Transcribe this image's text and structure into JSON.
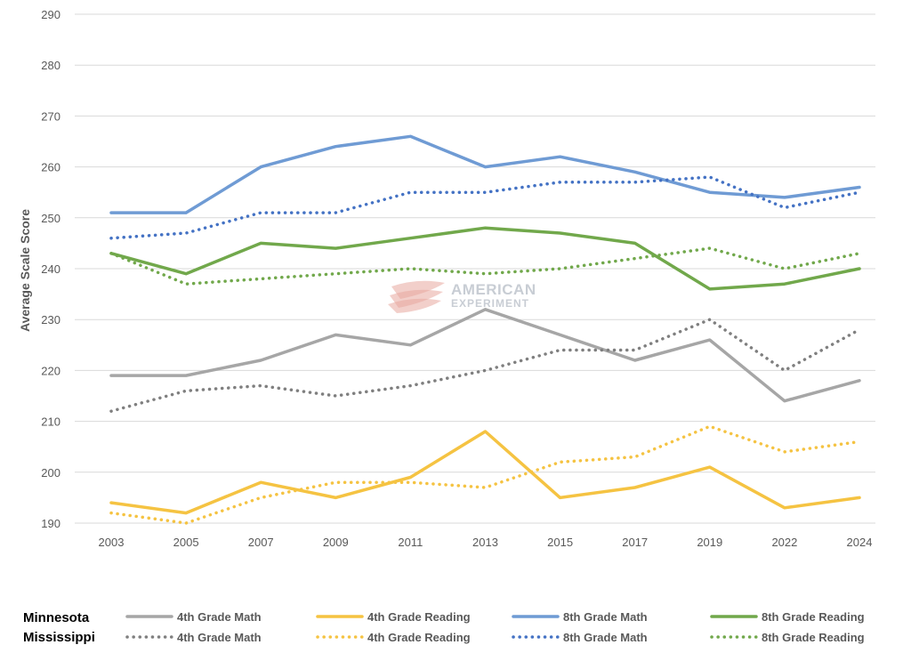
{
  "chart_data": {
    "type": "line",
    "title": "",
    "xlabel": "",
    "ylabel": "Average Scale Score",
    "categories": [
      "2003",
      "2005",
      "2007",
      "2009",
      "2011",
      "2013",
      "2015",
      "2017",
      "2019",
      "2022",
      "2024"
    ],
    "ylim": [
      190,
      290
    ],
    "yticks": [
      190,
      200,
      210,
      220,
      230,
      240,
      250,
      260,
      270,
      280,
      290
    ],
    "grid": true,
    "legend_position": "bottom",
    "series": [
      {
        "name": "4th Grade Math",
        "group": "Minnesota",
        "style": "solid",
        "color": "#a6a6a6",
        "values": [
          219,
          219,
          222,
          227,
          225,
          232,
          227,
          222,
          226,
          214,
          218
        ]
      },
      {
        "name": "4th Grade Reading",
        "group": "Minnesota",
        "style": "solid",
        "color": "#f5c342",
        "values": [
          194,
          192,
          198,
          195,
          199,
          208,
          195,
          197,
          201,
          193,
          195
        ]
      },
      {
        "name": "8th Grade Math",
        "group": "Minnesota",
        "style": "solid",
        "color": "#6f9bd4",
        "values": [
          251,
          251,
          260,
          264,
          266,
          260,
          262,
          259,
          255,
          254,
          256
        ]
      },
      {
        "name": "8th Grade Reading",
        "group": "Minnesota",
        "style": "solid",
        "color": "#71a84b",
        "values": [
          243,
          239,
          245,
          244,
          246,
          248,
          247,
          245,
          236,
          237,
          240
        ]
      },
      {
        "name": "4th Grade Math",
        "group": "Mississippi",
        "style": "dotted",
        "color": "#7f7f7f",
        "values": [
          212,
          216,
          217,
          215,
          217,
          220,
          224,
          224,
          230,
          220,
          228
        ]
      },
      {
        "name": "4th Grade Reading",
        "group": "Mississippi",
        "style": "dotted",
        "color": "#f5c342",
        "values": [
          192,
          190,
          195,
          198,
          198,
          197,
          202,
          203,
          209,
          204,
          206
        ]
      },
      {
        "name": "8th Grade Math",
        "group": "Mississippi",
        "style": "dotted",
        "color": "#4472c4",
        "values": [
          246,
          247,
          251,
          251,
          255,
          255,
          257,
          257,
          258,
          252,
          255
        ]
      },
      {
        "name": "8th Grade Reading",
        "group": "Mississippi",
        "style": "dotted",
        "color": "#71a84b",
        "values": [
          243,
          237,
          238,
          239,
          240,
          239,
          240,
          242,
          244,
          240,
          243
        ]
      }
    ]
  },
  "legend": {
    "groups": [
      "Minnesota",
      "Mississippi"
    ]
  },
  "watermark": {
    "line1": "AMERICAN",
    "line2": "EXPERIMENT",
    "color": "#e8a89f"
  }
}
